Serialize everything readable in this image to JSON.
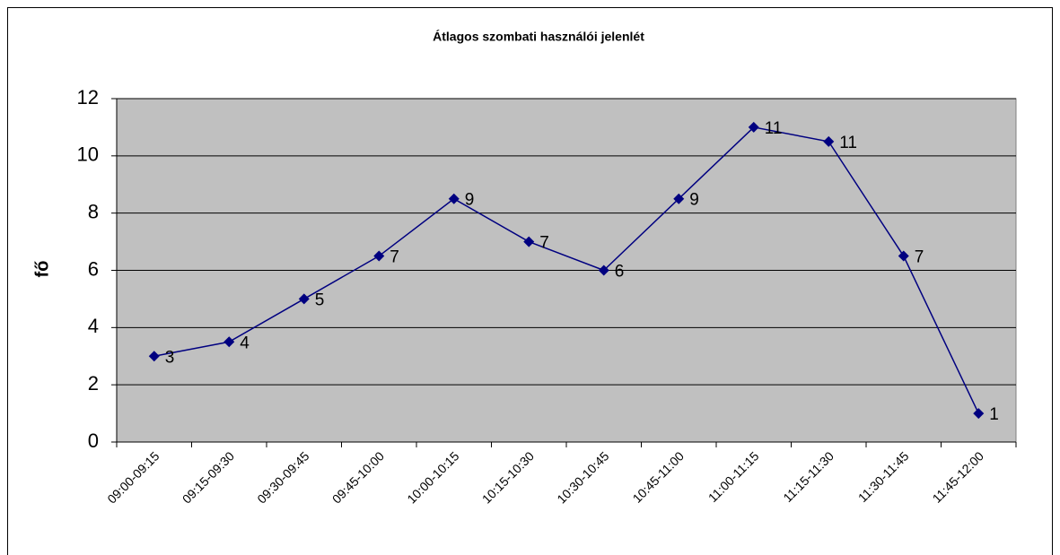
{
  "chart_data": {
    "type": "line",
    "title": "Átlagos szombati használói jelenlét",
    "ylabel": "fő",
    "categories": [
      "09:00-09:15",
      "09:15-09:30",
      "09:30-09:45",
      "09:45-10:00",
      "10:00-10:15",
      "10:15-10:30",
      "10:30-10:45",
      "10:45-11:00",
      "11:00-11:15",
      "11:15-11:30",
      "11:30-11:45",
      "11:45-12:00"
    ],
    "series": [
      {
        "name": "fő",
        "color": "#000080",
        "values": [
          3,
          3.5,
          5,
          6.5,
          8.5,
          7,
          6,
          8.5,
          11,
          10.5,
          6.5,
          1
        ],
        "value_labels": [
          "3",
          "4",
          "5",
          "7",
          "9",
          "7",
          "6",
          "9",
          "11",
          "11",
          "7",
          "1"
        ]
      }
    ],
    "ylim": [
      0,
      12
    ],
    "yticks": [
      0,
      2,
      4,
      6,
      8,
      10,
      12
    ],
    "grid": true,
    "plot_background": "#c0c0c0"
  }
}
